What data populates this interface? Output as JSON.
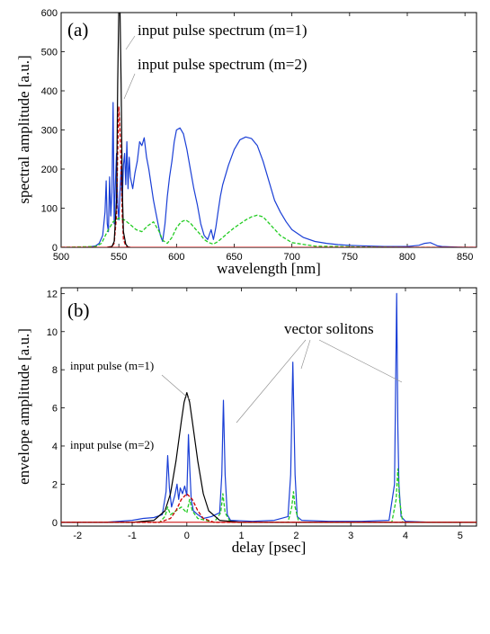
{
  "chart_data": [
    {
      "type": "line",
      "panel_label": "(a)",
      "xlabel": "wavelength [nm]",
      "ylabel": "spectral amplitude [a.u.]",
      "xlim": [
        500,
        860
      ],
      "ylim": [
        0,
        600
      ],
      "xticks": [
        500,
        550,
        600,
        650,
        700,
        750,
        800,
        850
      ],
      "yticks": [
        0,
        100,
        200,
        300,
        400,
        500,
        600
      ],
      "grid": false,
      "annotations": [
        {
          "text": "input pulse spectrum (m=1)",
          "x": 553,
          "y": 600
        },
        {
          "text": "input pulse spectrum (m=2)",
          "x": 550,
          "y": 380
        }
      ],
      "series": [
        {
          "color": "#000000",
          "style": "solid",
          "x": [
            540,
            544,
            546,
            548,
            549,
            550,
            551,
            552,
            553,
            554,
            556,
            558,
            560
          ],
          "y": [
            0,
            2,
            15,
            120,
            420,
            620,
            620,
            420,
            150,
            40,
            8,
            1,
            0
          ]
        },
        {
          "color": "#cc0000",
          "style": "dashed",
          "x": [
            540,
            544,
            546,
            548,
            549,
            550,
            551,
            552,
            553,
            554,
            556,
            558
          ],
          "y": [
            0,
            2,
            10,
            80,
            240,
            360,
            300,
            200,
            80,
            20,
            4,
            0
          ]
        },
        {
          "color": "#1a3fd6",
          "style": "solid",
          "x": [
            500,
            510,
            520,
            525,
            530,
            533,
            536,
            538,
            539,
            540,
            541,
            542,
            543,
            544,
            545,
            546,
            547,
            548,
            549,
            550,
            551,
            552,
            553,
            554,
            555,
            556,
            557,
            558,
            559,
            560,
            562,
            564,
            566,
            568,
            570,
            572,
            574,
            576,
            578,
            580,
            582,
            584,
            586,
            588,
            590,
            592,
            594,
            596,
            598,
            600,
            603,
            606,
            609,
            612,
            615,
            618,
            621,
            624,
            627,
            630,
            632,
            634,
            636,
            638,
            640,
            645,
            650,
            655,
            660,
            665,
            670,
            675,
            680,
            685,
            690,
            695,
            700,
            710,
            720,
            730,
            740,
            750,
            760,
            770,
            780,
            790,
            800,
            810,
            815,
            820,
            823,
            826,
            830,
            840,
            850,
            860
          ],
          "y": [
            0,
            0,
            0,
            1,
            4,
            10,
            30,
            90,
            170,
            60,
            40,
            180,
            80,
            140,
            370,
            60,
            160,
            240,
            110,
            70,
            140,
            200,
            120,
            210,
            240,
            160,
            270,
            150,
            230,
            180,
            150,
            190,
            220,
            270,
            260,
            280,
            230,
            200,
            160,
            120,
            90,
            60,
            30,
            15,
            60,
            130,
            180,
            220,
            270,
            300,
            305,
            290,
            250,
            200,
            150,
            110,
            60,
            30,
            20,
            45,
            20,
            50,
            90,
            130,
            160,
            210,
            250,
            275,
            282,
            278,
            260,
            220,
            170,
            120,
            90,
            65,
            45,
            25,
            15,
            10,
            7,
            5,
            4,
            3,
            2,
            2,
            2,
            5,
            10,
            12,
            8,
            4,
            2,
            1,
            0,
            0
          ]
        },
        {
          "color": "#22cc22",
          "style": "dashed",
          "x": [
            500,
            530,
            535,
            540,
            545,
            550,
            555,
            560,
            565,
            570,
            575,
            580,
            585,
            588,
            592,
            596,
            600,
            604,
            608,
            612,
            616,
            620,
            624,
            628,
            632,
            636,
            640,
            645,
            650,
            655,
            660,
            665,
            670,
            675,
            680,
            690,
            700,
            720,
            760,
            800,
            860
          ],
          "y": [
            0,
            2,
            10,
            40,
            65,
            75,
            70,
            58,
            45,
            40,
            55,
            65,
            40,
            18,
            10,
            25,
            50,
            65,
            70,
            62,
            48,
            35,
            20,
            12,
            8,
            15,
            25,
            38,
            50,
            60,
            70,
            78,
            82,
            78,
            62,
            30,
            12,
            3,
            1,
            0,
            0
          ]
        }
      ]
    },
    {
      "type": "line",
      "panel_label": "(b)",
      "xlabel": "delay [psec]",
      "ylabel": "envelope amplitude [a.u.]",
      "xlim": [
        -2.3,
        5.3
      ],
      "ylim": [
        -0.2,
        12.3
      ],
      "xticks": [
        -2,
        -1,
        0,
        1,
        2,
        3,
        4,
        5
      ],
      "yticks": [
        0,
        2,
        4,
        6,
        8,
        10,
        12
      ],
      "grid": false,
      "annotations": [
        {
          "text": "vector solitons",
          "x": 1.5,
          "y": 10.7
        },
        {
          "text": "input pulse (m=1)",
          "x": -2.05,
          "y": 7.9
        },
        {
          "text": "input pulse (m=2)",
          "x": -2.05,
          "y": 4.2
        }
      ],
      "series": [
        {
          "color": "#000000",
          "style": "solid",
          "x": [
            -2.3,
            -1,
            -0.6,
            -0.4,
            -0.3,
            -0.2,
            -0.1,
            -0.05,
            0,
            0.05,
            0.1,
            0.2,
            0.3,
            0.4,
            0.6,
            1,
            5.3
          ],
          "y": [
            0,
            0,
            0.1,
            0.6,
            1.5,
            3.2,
            5.3,
            6.3,
            6.8,
            6.3,
            5.3,
            3.2,
            1.5,
            0.6,
            0.1,
            0,
            0
          ]
        },
        {
          "color": "#cc0000",
          "style": "dashed",
          "x": [
            -2.3,
            -0.5,
            -0.3,
            -0.2,
            -0.1,
            0,
            0.1,
            0.2,
            0.3,
            0.5,
            5.3
          ],
          "y": [
            0,
            0,
            0.2,
            0.6,
            1.2,
            1.5,
            1.2,
            0.6,
            0.2,
            0,
            0
          ]
        },
        {
          "color": "#1a3fd6",
          "style": "solid",
          "x": [
            -2.3,
            -1.5,
            -1,
            -0.8,
            -0.6,
            -0.45,
            -0.38,
            -0.35,
            -0.32,
            -0.28,
            -0.22,
            -0.18,
            -0.15,
            -0.12,
            -0.08,
            -0.04,
            0,
            0.03,
            0.05,
            0.08,
            0.12,
            0.2,
            0.3,
            0.45,
            0.6,
            0.64,
            0.67,
            0.7,
            0.74,
            0.8,
            1.2,
            1.6,
            1.85,
            1.9,
            1.94,
            1.98,
            2.02,
            2.1,
            2.6,
            3.2,
            3.7,
            3.8,
            3.84,
            3.86,
            3.88,
            3.92,
            4,
            4.5,
            5.3
          ],
          "y": [
            0,
            0,
            0.1,
            0.2,
            0.25,
            0.4,
            1.6,
            3.5,
            1.8,
            0.8,
            1.4,
            2,
            1.2,
            1.8,
            1.5,
            1.9,
            1.4,
            4.6,
            3,
            1.2,
            0.6,
            0.4,
            0.2,
            0.3,
            0.5,
            2.5,
            6.4,
            2.5,
            0.4,
            0.1,
            0.05,
            0.1,
            0.3,
            2.5,
            8.4,
            2.5,
            0.3,
            0.1,
            0.05,
            0.05,
            0.1,
            2,
            12,
            5,
            2,
            0.3,
            0.05,
            0,
            0
          ]
        },
        {
          "color": "#22cc22",
          "style": "dashed",
          "x": [
            -2.3,
            -0.5,
            -0.4,
            -0.35,
            -0.3,
            -0.2,
            -0.1,
            0,
            0.05,
            0.1,
            0.2,
            0.5,
            0.62,
            0.66,
            0.7,
            0.8,
            1.85,
            1.92,
            1.95,
            1.98,
            2.05,
            3.75,
            3.83,
            3.86,
            3.89,
            3.95,
            5.3
          ],
          "y": [
            0,
            0,
            0.3,
            0.8,
            0.4,
            0.6,
            0.8,
            0.5,
            1.2,
            0.6,
            0.2,
            0,
            0.5,
            1.5,
            0.5,
            0,
            0,
            0.8,
            1.6,
            0.8,
            0,
            0,
            1.2,
            2.8,
            1.2,
            0,
            0
          ]
        }
      ]
    }
  ]
}
